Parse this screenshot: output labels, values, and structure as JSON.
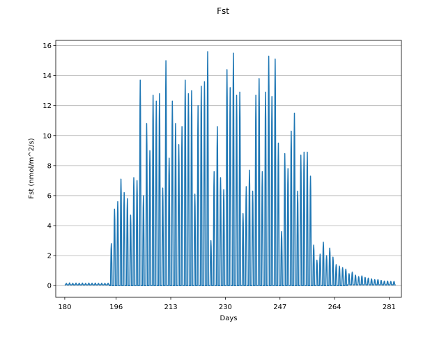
{
  "chart_data": {
    "type": "line",
    "title": "Fst",
    "xlabel": "Days",
    "ylabel": "Fst (nmol/m^2/s)",
    "xlim": [
      177.2,
      284.8
    ],
    "ylim": [
      -0.78,
      16.35
    ],
    "xticks": [
      180,
      196,
      213,
      230,
      247,
      264,
      281
    ],
    "yticks": [
      0,
      2,
      4,
      6,
      8,
      10,
      12,
      14,
      16
    ],
    "grid": "horizontal",
    "line_color": "#1f77b4",
    "daily_peaks": [
      {
        "day": 180,
        "peak": 0.15
      },
      {
        "day": 181,
        "peak": 0.18
      },
      {
        "day": 182,
        "peak": 0.15
      },
      {
        "day": 183,
        "peak": 0.17
      },
      {
        "day": 184,
        "peak": 0.16
      },
      {
        "day": 185,
        "peak": 0.17
      },
      {
        "day": 186,
        "peak": 0.15
      },
      {
        "day": 187,
        "peak": 0.17
      },
      {
        "day": 188,
        "peak": 0.16
      },
      {
        "day": 189,
        "peak": 0.17
      },
      {
        "day": 190,
        "peak": 0.15
      },
      {
        "day": 191,
        "peak": 0.16
      },
      {
        "day": 192,
        "peak": 0.15
      },
      {
        "day": 193,
        "peak": 0.16
      },
      {
        "day": 194,
        "peak": 2.8
      },
      {
        "day": 195,
        "peak": 5.1
      },
      {
        "day": 196,
        "peak": 5.6
      },
      {
        "day": 197,
        "peak": 7.1
      },
      {
        "day": 198,
        "peak": 6.2
      },
      {
        "day": 199,
        "peak": 5.8
      },
      {
        "day": 200,
        "peak": 4.7
      },
      {
        "day": 201,
        "peak": 7.2
      },
      {
        "day": 202,
        "peak": 7.0
      },
      {
        "day": 203,
        "peak": 13.7
      },
      {
        "day": 204,
        "peak": 6.0
      },
      {
        "day": 205,
        "peak": 10.8
      },
      {
        "day": 206,
        "peak": 9.0
      },
      {
        "day": 207,
        "peak": 12.7
      },
      {
        "day": 208,
        "peak": 12.3
      },
      {
        "day": 209,
        "peak": 12.8
      },
      {
        "day": 210,
        "peak": 6.5
      },
      {
        "day": 211,
        "peak": 15.0
      },
      {
        "day": 212,
        "peak": 8.5
      },
      {
        "day": 213,
        "peak": 12.3
      },
      {
        "day": 214,
        "peak": 10.8
      },
      {
        "day": 215,
        "peak": 9.4
      },
      {
        "day": 216,
        "peak": 10.6
      },
      {
        "day": 217,
        "peak": 13.7
      },
      {
        "day": 218,
        "peak": 12.8
      },
      {
        "day": 219,
        "peak": 13.0
      },
      {
        "day": 220,
        "peak": 6.1
      },
      {
        "day": 221,
        "peak": 12.0
      },
      {
        "day": 222,
        "peak": 13.3
      },
      {
        "day": 223,
        "peak": 13.6
      },
      {
        "day": 224,
        "peak": 15.6
      },
      {
        "day": 225,
        "peak": 3.0
      },
      {
        "day": 226,
        "peak": 7.6
      },
      {
        "day": 227,
        "peak": 10.6
      },
      {
        "day": 228,
        "peak": 7.2
      },
      {
        "day": 229,
        "peak": 6.4
      },
      {
        "day": 230,
        "peak": 14.4
      },
      {
        "day": 231,
        "peak": 13.2
      },
      {
        "day": 232,
        "peak": 15.5
      },
      {
        "day": 233,
        "peak": 12.7
      },
      {
        "day": 234,
        "peak": 12.9
      },
      {
        "day": 235,
        "peak": 4.8
      },
      {
        "day": 236,
        "peak": 6.6
      },
      {
        "day": 237,
        "peak": 7.7
      },
      {
        "day": 238,
        "peak": 6.3
      },
      {
        "day": 239,
        "peak": 12.7
      },
      {
        "day": 240,
        "peak": 13.8
      },
      {
        "day": 241,
        "peak": 7.6
      },
      {
        "day": 242,
        "peak": 12.9
      },
      {
        "day": 243,
        "peak": 15.3
      },
      {
        "day": 244,
        "peak": 12.6
      },
      {
        "day": 245,
        "peak": 15.1
      },
      {
        "day": 246,
        "peak": 9.5
      },
      {
        "day": 247,
        "peak": 3.6
      },
      {
        "day": 248,
        "peak": 8.8
      },
      {
        "day": 249,
        "peak": 7.8
      },
      {
        "day": 250,
        "peak": 10.3
      },
      {
        "day": 251,
        "peak": 11.5
      },
      {
        "day": 252,
        "peak": 6.3
      },
      {
        "day": 253,
        "peak": 8.7
      },
      {
        "day": 254,
        "peak": 8.9
      },
      {
        "day": 255,
        "peak": 8.9
      },
      {
        "day": 256,
        "peak": 7.3
      },
      {
        "day": 257,
        "peak": 2.7
      },
      {
        "day": 258,
        "peak": 1.7
      },
      {
        "day": 259,
        "peak": 2.1
      },
      {
        "day": 260,
        "peak": 2.9
      },
      {
        "day": 261,
        "peak": 2.0
      },
      {
        "day": 262,
        "peak": 2.5
      },
      {
        "day": 263,
        "peak": 1.9
      },
      {
        "day": 264,
        "peak": 1.4
      },
      {
        "day": 265,
        "peak": 1.3
      },
      {
        "day": 266,
        "peak": 1.2
      },
      {
        "day": 267,
        "peak": 1.1
      },
      {
        "day": 268,
        "peak": 0.8
      },
      {
        "day": 269,
        "peak": 0.9
      },
      {
        "day": 270,
        "peak": 0.7
      },
      {
        "day": 271,
        "peak": 0.6
      },
      {
        "day": 272,
        "peak": 0.65
      },
      {
        "day": 273,
        "peak": 0.55
      },
      {
        "day": 274,
        "peak": 0.5
      },
      {
        "day": 275,
        "peak": 0.45
      },
      {
        "day": 276,
        "peak": 0.4
      },
      {
        "day": 277,
        "peak": 0.4
      },
      {
        "day": 278,
        "peak": 0.35
      },
      {
        "day": 279,
        "peak": 0.3
      },
      {
        "day": 280,
        "peak": 0.3
      },
      {
        "day": 281,
        "peak": 0.28
      },
      {
        "day": 282,
        "peak": 0.28
      }
    ]
  }
}
